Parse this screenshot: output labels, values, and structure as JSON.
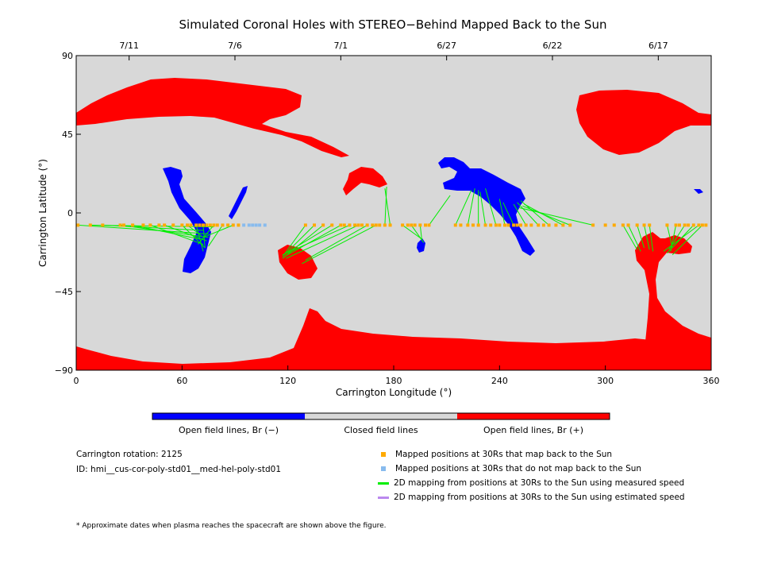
{
  "chart_data": {
    "type": "map",
    "title": "Simulated Coronal Holes with STEREO−Behind Mapped Back to the Sun",
    "xlabel": "Carrington Longitude (°)",
    "ylabel": "Carrington Latitude (°)",
    "xlim": [
      0,
      360
    ],
    "ylim": [
      -90,
      90
    ],
    "x_ticks": [
      "0",
      "60",
      "120",
      "180",
      "240",
      "300",
      "360"
    ],
    "y_ticks": [
      "90",
      "45",
      "0",
      "−45",
      "−90"
    ],
    "top_axis_dates": [
      {
        "label": "7/11",
        "lon": 30
      },
      {
        "label": "7/6",
        "lon": 90
      },
      {
        "label": "7/1",
        "lon": 150
      },
      {
        "label": "6/27",
        "lon": 210
      },
      {
        "label": "6/22",
        "lon": 270
      },
      {
        "label": "6/17",
        "lon": 330
      }
    ],
    "colors": {
      "closed": "#d8d8d8",
      "open_negative": "#0000ff",
      "open_positive": "#ff0000",
      "mapped_point": "#ffaa00",
      "unmapped_point": "#88bbee",
      "measured_line": "#00ee00",
      "estimated_line": "#bb88ee"
    },
    "colorbar": {
      "labels": [
        "Open field lines, Br (−)",
        "Closed field lines",
        "Open field lines, Br (+)"
      ]
    },
    "observation_latitude": -7,
    "mapped_longitudes": [
      1,
      8,
      15,
      25,
      27,
      32,
      38,
      42,
      47,
      50,
      55,
      60,
      63,
      65,
      68,
      70,
      72,
      74,
      76,
      78,
      80,
      83,
      86,
      89,
      92,
      130,
      135,
      140,
      145,
      150,
      152,
      155,
      158,
      160,
      162,
      165,
      168,
      170,
      172,
      175,
      178,
      185,
      188,
      190,
      192,
      195,
      198,
      200,
      215,
      218,
      222,
      225,
      228,
      232,
      235,
      238,
      240,
      243,
      245,
      248,
      250,
      252,
      255,
      258,
      262,
      265,
      268,
      272,
      276,
      280,
      293,
      300,
      305,
      310,
      313,
      318,
      322,
      325,
      335,
      340,
      342,
      345,
      347,
      350,
      353,
      355,
      357
    ],
    "unmapped_longitudes": [
      95,
      98,
      100,
      102,
      104,
      107
    ],
    "measured_links": [
      {
        "from": 1,
        "to": [
          75,
          -12
        ]
      },
      {
        "from": 8,
        "to": [
          78,
          -8
        ]
      },
      {
        "from": 15,
        "to": [
          72,
          -10
        ]
      },
      {
        "from": 25,
        "to": [
          75,
          -14
        ]
      },
      {
        "from": 32,
        "to": [
          70,
          -15
        ]
      },
      {
        "from": 42,
        "to": [
          72,
          -18
        ]
      },
      {
        "from": 50,
        "to": [
          74,
          -16
        ]
      },
      {
        "from": 60,
        "to": [
          73,
          -20
        ]
      },
      {
        "from": 63,
        "to": [
          71,
          -13
        ]
      },
      {
        "from": 68,
        "to": [
          72,
          -22
        ]
      },
      {
        "from": 72,
        "to": [
          73,
          -20
        ]
      },
      {
        "from": 78,
        "to": [
          69,
          -18
        ]
      },
      {
        "from": 83,
        "to": [
          75,
          -19
        ]
      },
      {
        "from": 89,
        "to": [
          72,
          -14
        ]
      },
      {
        "from": 130,
        "to": [
          117,
          -25
        ]
      },
      {
        "from": 135,
        "to": [
          118,
          -24
        ]
      },
      {
        "from": 140,
        "to": [
          117,
          -26
        ]
      },
      {
        "from": 145,
        "to": [
          119,
          -23
        ]
      },
      {
        "from": 150,
        "to": [
          118,
          -25
        ]
      },
      {
        "from": 155,
        "to": [
          117,
          -24
        ]
      },
      {
        "from": 160,
        "to": [
          119,
          -26
        ]
      },
      {
        "from": 165,
        "to": [
          130,
          -27
        ]
      },
      {
        "from": 170,
        "to": [
          128,
          -29
        ]
      },
      {
        "from": 175,
        "to": [
          176,
          15
        ]
      },
      {
        "from": 178,
        "to": [
          175,
          14
        ]
      },
      {
        "from": 185,
        "to": [
          196,
          -15
        ]
      },
      {
        "from": 190,
        "to": [
          197,
          -17
        ]
      },
      {
        "from": 195,
        "to": [
          196,
          -16
        ]
      },
      {
        "from": 200,
        "to": [
          212,
          10
        ]
      },
      {
        "from": 215,
        "to": [
          224,
          13
        ]
      },
      {
        "from": 222,
        "to": [
          226,
          14
        ]
      },
      {
        "from": 228,
        "to": [
          228,
          13
        ]
      },
      {
        "from": 232,
        "to": [
          229,
          12
        ]
      },
      {
        "from": 238,
        "to": [
          232,
          14
        ]
      },
      {
        "from": 243,
        "to": [
          240,
          8
        ]
      },
      {
        "from": 248,
        "to": [
          242,
          6
        ]
      },
      {
        "from": 255,
        "to": [
          248,
          5
        ]
      },
      {
        "from": 262,
        "to": [
          250,
          6
        ]
      },
      {
        "from": 268,
        "to": [
          252,
          7
        ]
      },
      {
        "from": 276,
        "to": [
          254,
          5
        ]
      },
      {
        "from": 280,
        "to": [
          253,
          4
        ]
      },
      {
        "from": 293,
        "to": [
          251,
          3
        ]
      },
      {
        "from": 310,
        "to": [
          318,
          -21
        ]
      },
      {
        "from": 313,
        "to": [
          320,
          -22
        ]
      },
      {
        "from": 318,
        "to": [
          322,
          -20
        ]
      },
      {
        "from": 322,
        "to": [
          325,
          -21
        ]
      },
      {
        "from": 325,
        "to": [
          327,
          -22
        ]
      },
      {
        "from": 335,
        "to": [
          338,
          -20
        ]
      },
      {
        "from": 340,
        "to": [
          337,
          -22
        ]
      },
      {
        "from": 345,
        "to": [
          336,
          -21
        ]
      },
      {
        "from": 350,
        "to": [
          335,
          -23
        ]
      },
      {
        "from": 353,
        "to": [
          333,
          -22
        ]
      },
      {
        "from": 355,
        "to": [
          338,
          -24
        ]
      }
    ]
  },
  "info": {
    "rotation": "Carrington rotation: 2125",
    "id": "ID: hmi__cus-cor-poly-std01__med-hel-poly-std01"
  },
  "legend": {
    "mapped": "Mapped positions at 30Rs that map back to the Sun",
    "unmapped": "Mapped positions at 30Rs that do not map back to the Sun",
    "measured": "2D mapping from positions at 30Rs to the Sun using measured speed",
    "estimated": "2D mapping from positions at 30Rs to the Sun using estimated speed"
  },
  "footnote": "* Approximate dates when plasma reaches the spacecraft are shown above the figure."
}
